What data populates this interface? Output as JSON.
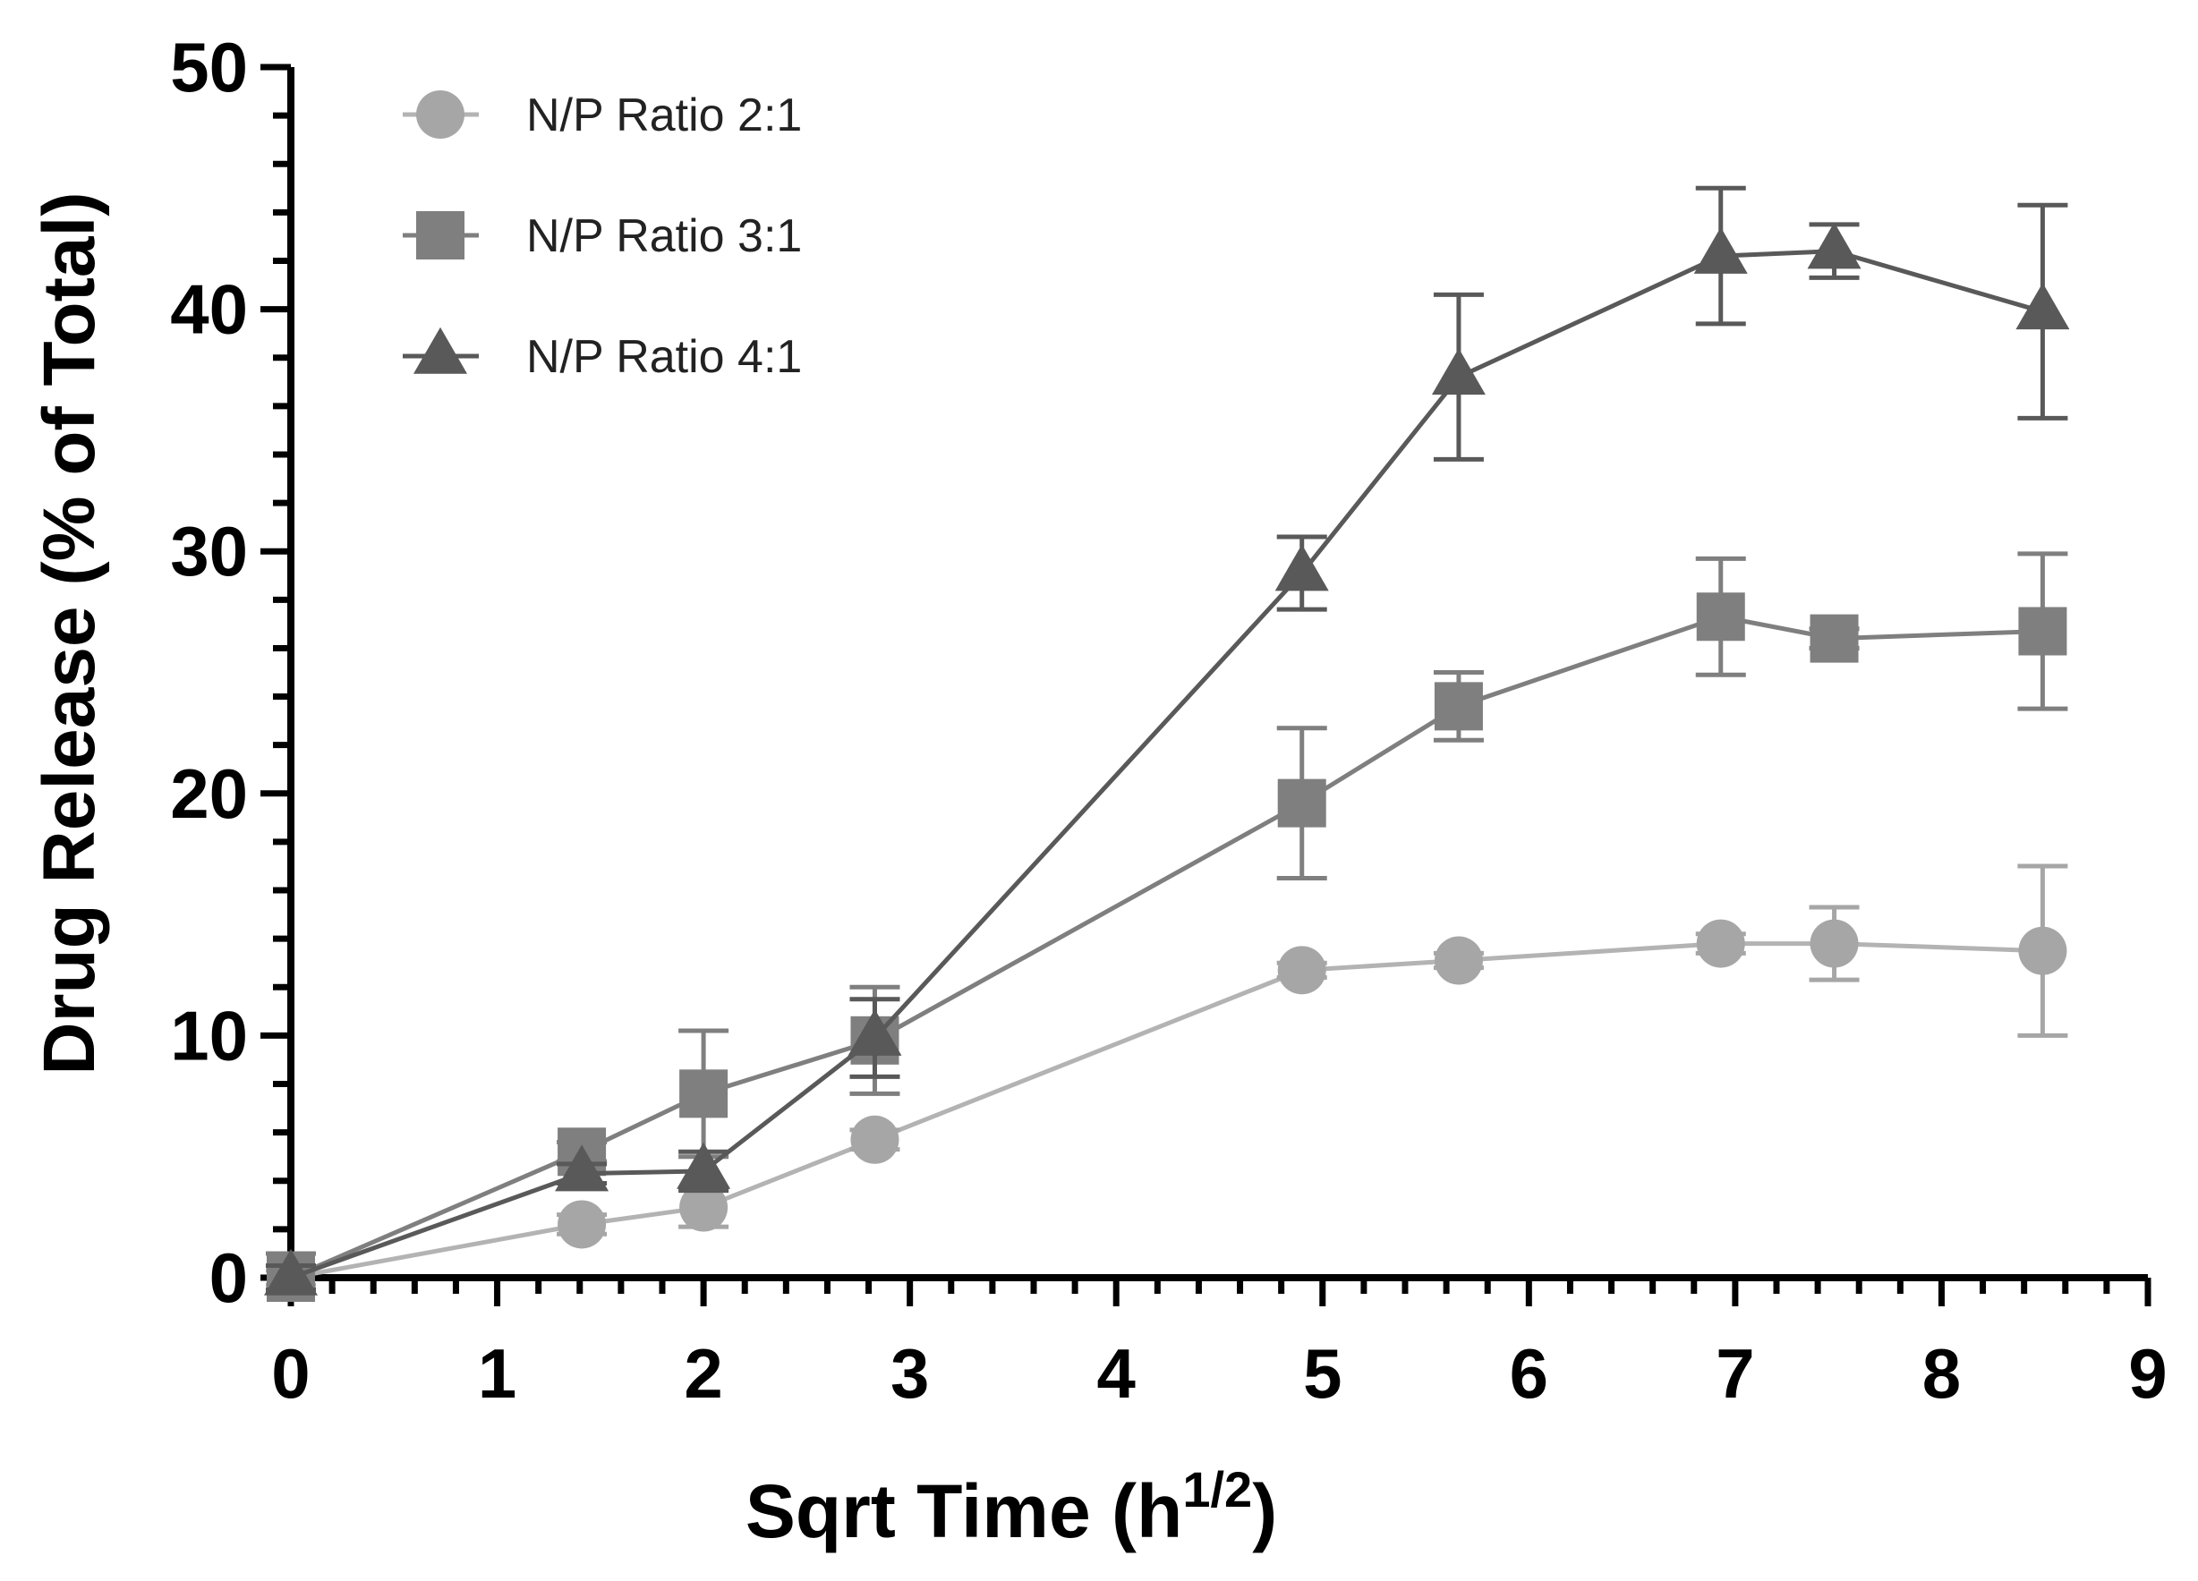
{
  "chart_data": {
    "type": "line",
    "title": "",
    "xlabel": "Sqrt Time (h",
    "xlabel_sup": "1/2",
    "xlabel_end": ")",
    "ylabel": "Drug Release (% of Total)",
    "xlim": [
      0,
      9
    ],
    "ylim": [
      0,
      50
    ],
    "x_ticks": [
      "0",
      "1",
      "2",
      "3",
      "4",
      "5",
      "6",
      "7",
      "8",
      "9"
    ],
    "y_ticks": [
      "0",
      "10",
      "20",
      "30",
      "40",
      "50"
    ],
    "legend_position": "top-left",
    "series": [
      {
        "name": "N/P Ratio 2:1",
        "marker": "circle",
        "color": "#a6a6a6",
        "line_color": "#b3b3b3",
        "x": [
          0,
          1.41,
          2,
          2.83,
          4.9,
          5.66,
          6.93,
          7.48,
          8.49
        ],
        "y": [
          0,
          2.2,
          2.9,
          5.7,
          12.7,
          13.1,
          13.8,
          13.8,
          13.5
        ],
        "err": [
          0.3,
          0.4,
          0.8,
          0.4,
          0.3,
          0.3,
          0.4,
          1.5,
          3.5
        ]
      },
      {
        "name": "N/P Ratio 3:1",
        "marker": "square",
        "color": "#7f7f7f",
        "line_color": "#7f7f7f",
        "x": [
          0,
          1.41,
          2,
          2.83,
          4.9,
          5.66,
          6.93,
          7.48,
          8.49
        ],
        "y": [
          0,
          5.2,
          7.6,
          9.8,
          19.6,
          23.6,
          27.3,
          26.4,
          26.7
        ],
        "err": [
          1.0,
          0.4,
          2.6,
          2.2,
          3.1,
          1.4,
          2.4,
          0.4,
          3.2
        ]
      },
      {
        "name": "N/P Ratio 4:1",
        "marker": "triangle",
        "color": "#595959",
        "line_color": "#595959",
        "x": [
          0,
          1.41,
          2,
          2.83,
          4.9,
          5.66,
          6.93,
          7.48,
          8.49
        ],
        "y": [
          0,
          4.3,
          4.4,
          9.9,
          29.1,
          37.2,
          42.2,
          42.4,
          39.9
        ],
        "err": [
          0.5,
          0.4,
          0.8,
          1.6,
          1.5,
          3.4,
          2.8,
          1.1,
          4.4
        ]
      }
    ]
  }
}
